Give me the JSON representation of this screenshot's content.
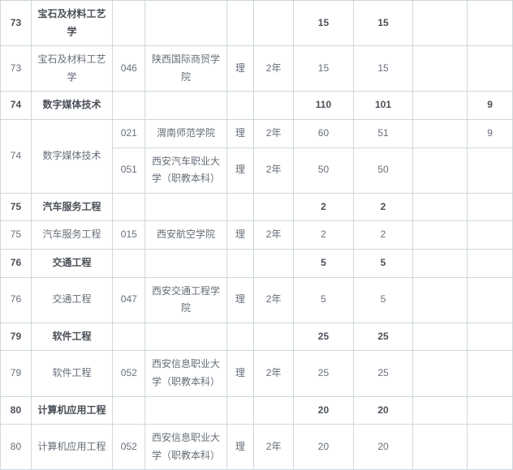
{
  "table": {
    "columns": [
      "c1",
      "c2",
      "c3",
      "c4",
      "c5",
      "c6",
      "c7",
      "c8",
      "c9",
      "c10"
    ],
    "rows": [
      {
        "bold": true,
        "cells": [
          {
            "v": "73"
          },
          {
            "v": "宝石及材料工艺学"
          },
          {
            "v": ""
          },
          {
            "v": ""
          },
          {
            "v": ""
          },
          {
            "v": ""
          },
          {
            "v": "15"
          },
          {
            "v": "15"
          },
          {
            "v": ""
          },
          {
            "v": ""
          }
        ]
      },
      {
        "bold": false,
        "cells": [
          {
            "v": "73"
          },
          {
            "v": "宝石及材料工艺学"
          },
          {
            "v": "046"
          },
          {
            "v": "陕西国际商贸学院"
          },
          {
            "v": "理"
          },
          {
            "v": "2年"
          },
          {
            "v": "15"
          },
          {
            "v": "15"
          },
          {
            "v": ""
          },
          {
            "v": ""
          }
        ]
      },
      {
        "bold": true,
        "cells": [
          {
            "v": "74"
          },
          {
            "v": "数字媒体技术"
          },
          {
            "v": ""
          },
          {
            "v": ""
          },
          {
            "v": ""
          },
          {
            "v": ""
          },
          {
            "v": "110"
          },
          {
            "v": "101"
          },
          {
            "v": ""
          },
          {
            "v": "9"
          }
        ]
      },
      {
        "bold": false,
        "cells": [
          {
            "v": "74",
            "rowspan": 2
          },
          {
            "v": "数字媒体技术",
            "rowspan": 2
          },
          {
            "v": "021"
          },
          {
            "v": "渭南师范学院"
          },
          {
            "v": "理"
          },
          {
            "v": "2年"
          },
          {
            "v": "60"
          },
          {
            "v": "51"
          },
          {
            "v": ""
          },
          {
            "v": "9"
          }
        ]
      },
      {
        "bold": false,
        "cells": [
          {
            "v": "051"
          },
          {
            "v": "西安汽车职业大学（职教本科）"
          },
          {
            "v": "理"
          },
          {
            "v": "2年"
          },
          {
            "v": "50"
          },
          {
            "v": "50"
          },
          {
            "v": ""
          },
          {
            "v": ""
          }
        ]
      },
      {
        "bold": true,
        "cells": [
          {
            "v": "75"
          },
          {
            "v": "汽车服务工程"
          },
          {
            "v": ""
          },
          {
            "v": ""
          },
          {
            "v": ""
          },
          {
            "v": ""
          },
          {
            "v": "2"
          },
          {
            "v": "2"
          },
          {
            "v": ""
          },
          {
            "v": ""
          }
        ]
      },
      {
        "bold": false,
        "cells": [
          {
            "v": "75"
          },
          {
            "v": "汽车服务工程"
          },
          {
            "v": "015"
          },
          {
            "v": "西安航空学院"
          },
          {
            "v": "理"
          },
          {
            "v": "2年"
          },
          {
            "v": "2"
          },
          {
            "v": "2"
          },
          {
            "v": ""
          },
          {
            "v": ""
          }
        ]
      },
      {
        "bold": true,
        "cells": [
          {
            "v": "76"
          },
          {
            "v": "交通工程"
          },
          {
            "v": ""
          },
          {
            "v": ""
          },
          {
            "v": ""
          },
          {
            "v": ""
          },
          {
            "v": "5"
          },
          {
            "v": "5"
          },
          {
            "v": ""
          },
          {
            "v": ""
          }
        ]
      },
      {
        "bold": false,
        "cells": [
          {
            "v": "76"
          },
          {
            "v": "交通工程"
          },
          {
            "v": "047"
          },
          {
            "v": "西安交通工程学院"
          },
          {
            "v": "理"
          },
          {
            "v": "2年"
          },
          {
            "v": "5"
          },
          {
            "v": "5"
          },
          {
            "v": ""
          },
          {
            "v": ""
          }
        ]
      },
      {
        "bold": true,
        "cells": [
          {
            "v": "79"
          },
          {
            "v": "软件工程"
          },
          {
            "v": ""
          },
          {
            "v": ""
          },
          {
            "v": ""
          },
          {
            "v": ""
          },
          {
            "v": "25"
          },
          {
            "v": "25"
          },
          {
            "v": ""
          },
          {
            "v": ""
          }
        ]
      },
      {
        "bold": false,
        "cells": [
          {
            "v": "79"
          },
          {
            "v": "软件工程"
          },
          {
            "v": "052"
          },
          {
            "v": "西安信息职业大学（职教本科）"
          },
          {
            "v": "理"
          },
          {
            "v": "2年"
          },
          {
            "v": "25"
          },
          {
            "v": "25"
          },
          {
            "v": ""
          },
          {
            "v": ""
          }
        ]
      },
      {
        "bold": true,
        "cells": [
          {
            "v": "80"
          },
          {
            "v": "计算机应用工程"
          },
          {
            "v": ""
          },
          {
            "v": ""
          },
          {
            "v": ""
          },
          {
            "v": ""
          },
          {
            "v": "20"
          },
          {
            "v": "20"
          },
          {
            "v": ""
          },
          {
            "v": ""
          }
        ]
      },
      {
        "bold": false,
        "cells": [
          {
            "v": "80"
          },
          {
            "v": "计算机应用工程"
          },
          {
            "v": "052"
          },
          {
            "v": "西安信息职业大学（职教本科）"
          },
          {
            "v": "理"
          },
          {
            "v": "2年"
          },
          {
            "v": "20"
          },
          {
            "v": "20"
          },
          {
            "v": ""
          },
          {
            "v": ""
          }
        ]
      }
    ]
  }
}
